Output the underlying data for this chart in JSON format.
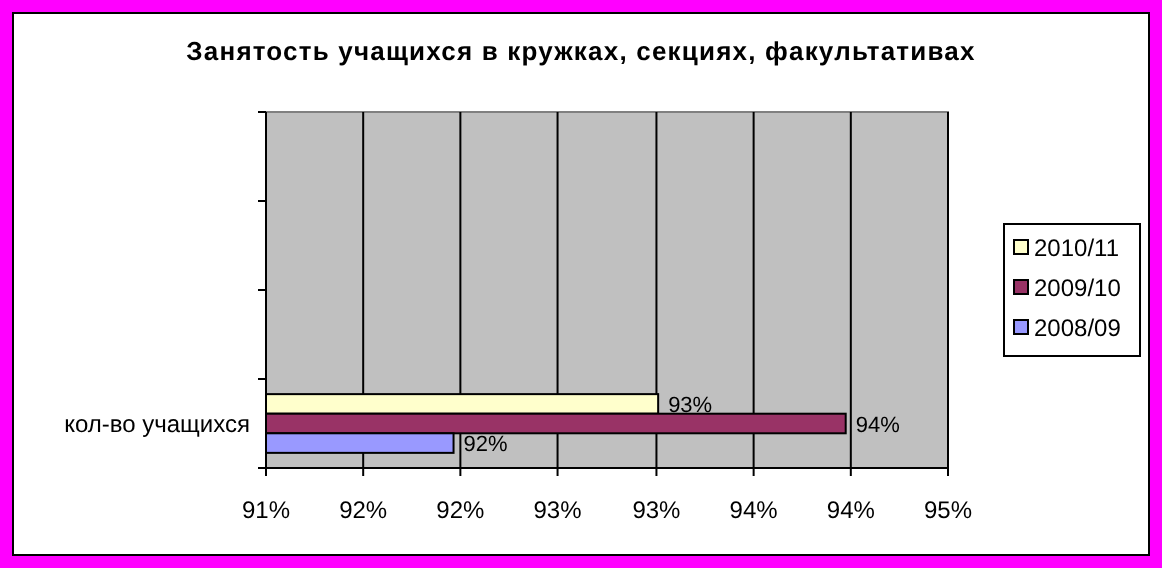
{
  "chart_data": {
    "type": "bar",
    "orientation": "horizontal",
    "title": "Занятость учащихся в кружках, секциях, факультативах",
    "categories": [
      "кол-во учащихся"
    ],
    "series": [
      {
        "name": "2010/11",
        "color": "#ffffcc",
        "values": [
          93.3
        ],
        "value_labels": [
          "93%"
        ]
      },
      {
        "name": "2009/10",
        "color": "#993366",
        "values": [
          94.4
        ],
        "value_labels": [
          "94%"
        ]
      },
      {
        "name": "2008/09",
        "color": "#9999ff",
        "values": [
          92.1
        ],
        "value_labels": [
          "92%"
        ]
      }
    ],
    "xlim": [
      91,
      95
    ],
    "xticks": [
      {
        "value": 91,
        "label": "91%"
      },
      {
        "value": 91.57,
        "label": "92%"
      },
      {
        "value": 92.14,
        "label": "92%"
      },
      {
        "value": 92.71,
        "label": "93%"
      },
      {
        "value": 93.29,
        "label": "93%"
      },
      {
        "value": 93.86,
        "label": "94%"
      },
      {
        "value": 94.43,
        "label": "94%"
      },
      {
        "value": 95,
        "label": "95%"
      }
    ],
    "grid": "x",
    "legend": "right"
  }
}
